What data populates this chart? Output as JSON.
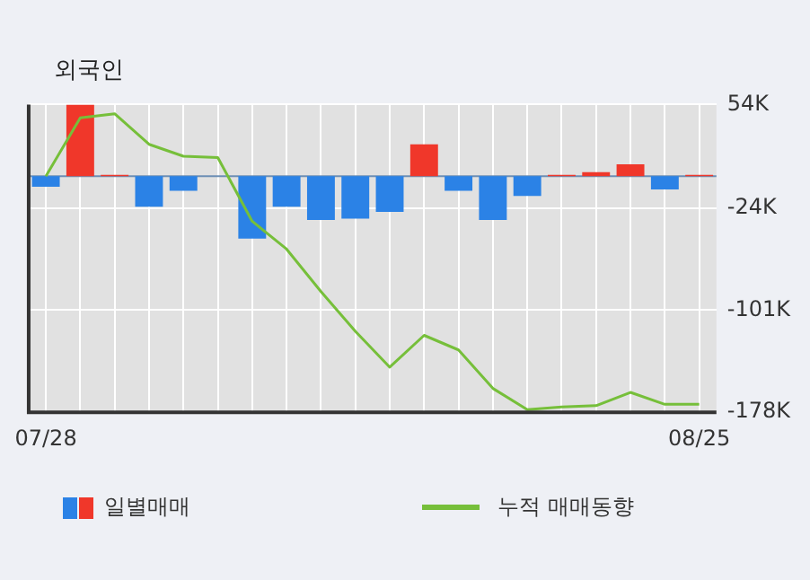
{
  "chart_data": {
    "type": "bar",
    "title": "외국인",
    "categories": [
      "07/28",
      null,
      null,
      null,
      null,
      null,
      null,
      null,
      null,
      null,
      null,
      null,
      null,
      null,
      null,
      null,
      null,
      null,
      null,
      "08/25"
    ],
    "series": [
      {
        "name": "일별매매",
        "values": [
          -8,
          54,
          1,
          -23,
          -11,
          0,
          -47,
          -23,
          -33,
          -32,
          -27,
          24,
          -11,
          -33,
          -15,
          1,
          3,
          9,
          -10,
          1
        ],
        "colors": [
          "#2b82e6",
          "#f0372a",
          "#f0372a",
          "#2b82e6",
          "#2b82e6",
          "#2b82e6",
          "#2b82e6",
          "#2b82e6",
          "#2b82e6",
          "#2b82e6",
          "#2b82e6",
          "#f0372a",
          "#2b82e6",
          "#2b82e6",
          "#2b82e6",
          "#f0372a",
          "#f0372a",
          "#f0372a",
          "#2b82e6",
          "#f0372a"
        ]
      },
      {
        "name": "누적 매매동향",
        "type": "line",
        "color": "#76bf3a",
        "values": [
          0,
          44,
          47,
          24,
          15,
          14,
          -34,
          -55,
          -87,
          -117,
          -144,
          -120,
          -131,
          -160,
          -176,
          -174,
          -173,
          -163,
          -172,
          -172
        ]
      }
    ],
    "ylim": [
      -178,
      54
    ],
    "yticks": [
      {
        "value": 54,
        "label": "54K"
      },
      {
        "value": -24,
        "label": "-24K"
      },
      {
        "value": -101,
        "label": "-101K"
      },
      {
        "value": -178,
        "label": "-178K"
      }
    ],
    "ref_lines": [
      {
        "axis": "y",
        "value": 0,
        "color": "#6d8fb5"
      }
    ],
    "grid": true,
    "legend": "bottom",
    "marker": "none"
  }
}
